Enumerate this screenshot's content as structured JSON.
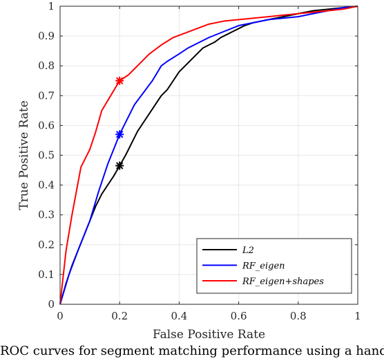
{
  "chart_data": {
    "type": "line",
    "title": "",
    "xlabel": "False Positive Rate",
    "ylabel": "True Positive Rate",
    "xlim": [
      0,
      1
    ],
    "ylim": [
      0,
      1
    ],
    "xticks": [
      0,
      0.2,
      0.4,
      0.6,
      0.8,
      1
    ],
    "xtick_labels": [
      "0",
      "0.2",
      "0.4",
      "0.6",
      "0.8",
      "1"
    ],
    "yticks": [
      0,
      0.1,
      0.2,
      0.3,
      0.4,
      0.5,
      0.6,
      0.7,
      0.8,
      0.9,
      1
    ],
    "ytick_labels": [
      "0",
      "0.1",
      "0.2",
      "0.3",
      "0.4",
      "0.5",
      "0.6",
      "0.7",
      "0.8",
      "0.9",
      "1"
    ],
    "grid": true,
    "legend_position": "bottom-right",
    "series": [
      {
        "name": "L2",
        "color": "#000000",
        "x": [
          0,
          0.02,
          0.04,
          0.06,
          0.08,
          0.1,
          0.12,
          0.14,
          0.16,
          0.18,
          0.2,
          0.22,
          0.24,
          0.26,
          0.28,
          0.3,
          0.32,
          0.34,
          0.36,
          0.38,
          0.4,
          0.42,
          0.44,
          0.46,
          0.48,
          0.5,
          0.52,
          0.54,
          0.56,
          0.58,
          0.6,
          0.62,
          0.65,
          0.7,
          0.75,
          0.8,
          0.85,
          0.9,
          0.95,
          1
        ],
        "y": [
          0,
          0.07,
          0.13,
          0.18,
          0.23,
          0.28,
          0.33,
          0.37,
          0.4,
          0.43,
          0.465,
          0.5,
          0.54,
          0.58,
          0.61,
          0.64,
          0.67,
          0.7,
          0.72,
          0.75,
          0.78,
          0.8,
          0.82,
          0.84,
          0.86,
          0.87,
          0.88,
          0.895,
          0.905,
          0.915,
          0.925,
          0.935,
          0.945,
          0.955,
          0.965,
          0.975,
          0.985,
          0.99,
          0.995,
          1
        ]
      },
      {
        "name": "RF_eigen",
        "color": "#0000ff",
        "x": [
          0,
          0.03,
          0.06,
          0.1,
          0.13,
          0.16,
          0.18,
          0.2,
          0.22,
          0.25,
          0.28,
          0.31,
          0.34,
          0.36,
          0.4,
          0.43,
          0.46,
          0.5,
          0.55,
          0.6,
          0.65,
          0.7,
          0.75,
          0.8,
          0.85,
          0.9,
          0.95,
          1
        ],
        "y": [
          0,
          0.1,
          0.18,
          0.28,
          0.38,
          0.47,
          0.52,
          0.57,
          0.61,
          0.67,
          0.71,
          0.75,
          0.8,
          0.815,
          0.84,
          0.86,
          0.875,
          0.895,
          0.915,
          0.935,
          0.945,
          0.955,
          0.96,
          0.965,
          0.975,
          0.985,
          0.995,
          1
        ]
      },
      {
        "name": "RF_eigen+shapes",
        "color": "#ff0000",
        "x": [
          0,
          0.02,
          0.04,
          0.07,
          0.1,
          0.12,
          0.14,
          0.17,
          0.2,
          0.23,
          0.26,
          0.3,
          0.34,
          0.38,
          0.42,
          0.46,
          0.5,
          0.55,
          0.6,
          0.65,
          0.7,
          0.75,
          0.8,
          0.85,
          0.9,
          0.95,
          1
        ],
        "y": [
          0,
          0.18,
          0.3,
          0.46,
          0.52,
          0.58,
          0.65,
          0.7,
          0.75,
          0.77,
          0.8,
          0.84,
          0.87,
          0.895,
          0.91,
          0.925,
          0.94,
          0.95,
          0.955,
          0.96,
          0.965,
          0.97,
          0.975,
          0.98,
          0.985,
          0.99,
          1
        ]
      }
    ],
    "markers": [
      {
        "series": "L2",
        "x": 0.2,
        "y": 0.465,
        "symbol": "asterisk",
        "color": "#000000"
      },
      {
        "series": "RF_eigen",
        "x": 0.2,
        "y": 0.57,
        "symbol": "asterisk",
        "color": "#0000ff"
      },
      {
        "series": "RF_eigen+shapes",
        "x": 0.2,
        "y": 0.75,
        "symbol": "asterisk",
        "color": "#ff0000"
      }
    ]
  },
  "caption": "ROC curves for segment matching performance using a hand t"
}
